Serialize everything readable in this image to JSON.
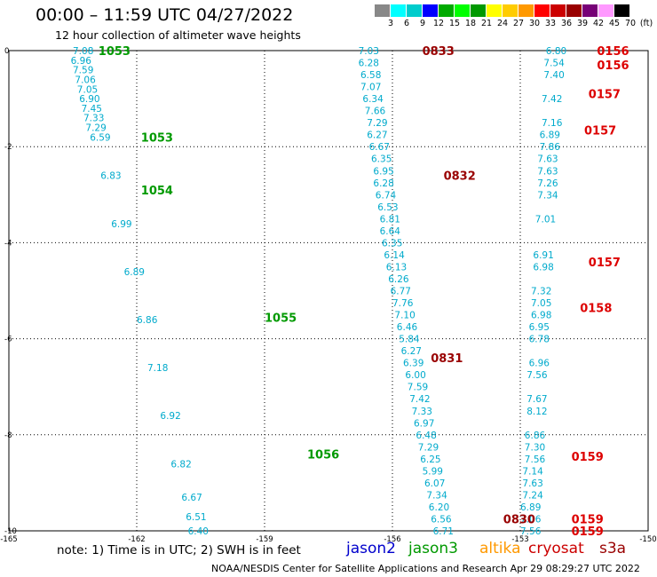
{
  "header": {
    "title": "00:00 – 11:59 UTC 04/27/2022",
    "subtitle": "12 hour collection of altimeter wave heights"
  },
  "color_scale": {
    "colors": [
      "#888888",
      "#00ffff",
      "#00cccc",
      "#0000ff",
      "#00aa00",
      "#00ff00",
      "#009900",
      "#ffff00",
      "#ffcc00",
      "#ff9900",
      "#ff0000",
      "#cc0000",
      "#990000",
      "#770077",
      "#ff99ff",
      "#000000"
    ],
    "labels": [
      "3",
      "6",
      "9",
      "12",
      "15",
      "18",
      "21",
      "24",
      "27",
      "30",
      "33",
      "36",
      "39",
      "42",
      "45",
      "70",
      "(ft)"
    ]
  },
  "footer": {
    "note": "note:  1) Time is in UTC;  2) SWH is in feet",
    "credit": "NOAA/NESDIS Center for Satellite Applications and Research     Apr 29 08:29:27 UTC 2022",
    "satellites": [
      {
        "name": "jason2",
        "color": "#0000cc"
      },
      {
        "name": "jason3",
        "color": "#009900"
      },
      {
        "name": "altika",
        "color": "#ff9900"
      },
      {
        "name": "cryosat",
        "color": "#cc0000"
      },
      {
        "name": "s3a",
        "color": "#990000"
      }
    ]
  },
  "chart_data": {
    "type": "scatter",
    "title": "00:00 – 11:59 UTC 04/27/2022",
    "subtitle": "12 hour collection of altimeter wave heights",
    "xlabel": "",
    "ylabel": "",
    "xlim": [
      -165,
      -150
    ],
    "ylim": [
      -10,
      0
    ],
    "x_ticks": [
      -165,
      -162,
      -159,
      -156,
      -153,
      -150
    ],
    "y_ticks": [
      0,
      -2,
      -4,
      -6,
      -8,
      -10
    ],
    "grid": true,
    "tracks": [
      {
        "name": "jason3 track (west)",
        "color": "#00aacc",
        "points": [
          {
            "x": -163.5,
            "y": 0.0,
            "v": "7.08"
          },
          {
            "x": -163.55,
            "y": -0.2,
            "v": "6.96"
          },
          {
            "x": -163.5,
            "y": -0.4,
            "v": "7.59"
          },
          {
            "x": -163.45,
            "y": -0.6,
            "v": "7.06"
          },
          {
            "x": -163.4,
            "y": -0.8,
            "v": "7.05"
          },
          {
            "x": -163.35,
            "y": -1.0,
            "v": "6.90"
          },
          {
            "x": -163.3,
            "y": -1.2,
            "v": "7.45"
          },
          {
            "x": -163.25,
            "y": -1.4,
            "v": "7.33"
          },
          {
            "x": -163.2,
            "y": -1.6,
            "v": "7.29"
          },
          {
            "x": -163.1,
            "y": -1.8,
            "v": "6.59"
          },
          {
            "x": -162.85,
            "y": -2.6,
            "v": "6.83"
          },
          {
            "x": -162.6,
            "y": -3.6,
            "v": "6.99"
          },
          {
            "x": -162.3,
            "y": -4.6,
            "v": "6.89"
          },
          {
            "x": -162.0,
            "y": -5.6,
            "v": "6.86"
          },
          {
            "x": -161.75,
            "y": -6.6,
            "v": "7.18"
          },
          {
            "x": -161.45,
            "y": -7.6,
            "v": "6.92"
          },
          {
            "x": -161.2,
            "y": -8.6,
            "v": "6.82"
          },
          {
            "x": -160.95,
            "y": -9.3,
            "v": "6.67"
          },
          {
            "x": -160.85,
            "y": -9.7,
            "v": "6.51"
          },
          {
            "x": -160.8,
            "y": -10.0,
            "v": "6.40"
          }
        ]
      },
      {
        "name": "middle track",
        "color": "#00aacc",
        "points": [
          {
            "x": -156.8,
            "y": 0.0,
            "v": "7.03"
          },
          {
            "x": -156.8,
            "y": -0.25,
            "v": "6.28"
          },
          {
            "x": -156.75,
            "y": -0.5,
            "v": "6.58"
          },
          {
            "x": -156.75,
            "y": -0.75,
            "v": "7.07"
          },
          {
            "x": -156.7,
            "y": -1.0,
            "v": "6.34"
          },
          {
            "x": -156.65,
            "y": -1.25,
            "v": "7.66"
          },
          {
            "x": -156.6,
            "y": -1.5,
            "v": "7.29"
          },
          {
            "x": -156.6,
            "y": -1.75,
            "v": "6.27"
          },
          {
            "x": -156.55,
            "y": -2.0,
            "v": "6.67"
          },
          {
            "x": -156.5,
            "y": -2.25,
            "v": "6.35"
          },
          {
            "x": -156.45,
            "y": -2.5,
            "v": "6.95"
          },
          {
            "x": -156.45,
            "y": -2.75,
            "v": "6.28"
          },
          {
            "x": -156.4,
            "y": -3.0,
            "v": "6.74"
          },
          {
            "x": -156.35,
            "y": -3.25,
            "v": "6.53"
          },
          {
            "x": -156.3,
            "y": -3.5,
            "v": "6.81"
          },
          {
            "x": -156.3,
            "y": -3.75,
            "v": "6.64"
          },
          {
            "x": -156.25,
            "y": -4.0,
            "v": "6.35"
          },
          {
            "x": -156.2,
            "y": -4.25,
            "v": "6.14"
          },
          {
            "x": -156.15,
            "y": -4.5,
            "v": "6.13"
          },
          {
            "x": -156.1,
            "y": -4.75,
            "v": "6.26"
          },
          {
            "x": -156.05,
            "y": -5.0,
            "v": "6.77"
          },
          {
            "x": -156.0,
            "y": -5.25,
            "v": "7.76"
          },
          {
            "x": -155.95,
            "y": -5.5,
            "v": "7.10"
          },
          {
            "x": -155.9,
            "y": -5.75,
            "v": "6.46"
          },
          {
            "x": -155.85,
            "y": -6.0,
            "v": "5.84"
          },
          {
            "x": -155.8,
            "y": -6.25,
            "v": "6.27"
          },
          {
            "x": -155.75,
            "y": -6.5,
            "v": "6.39"
          },
          {
            "x": -155.7,
            "y": -6.75,
            "v": "6.00"
          },
          {
            "x": -155.65,
            "y": -7.0,
            "v": "7.59"
          },
          {
            "x": -155.6,
            "y": -7.25,
            "v": "7.42"
          },
          {
            "x": -155.55,
            "y": -7.5,
            "v": "7.33"
          },
          {
            "x": -155.5,
            "y": -7.75,
            "v": "6.97"
          },
          {
            "x": -155.45,
            "y": -8.0,
            "v": "6.48"
          },
          {
            "x": -155.4,
            "y": -8.25,
            "v": "7.29"
          },
          {
            "x": -155.35,
            "y": -8.5,
            "v": "6.25"
          },
          {
            "x": -155.3,
            "y": -8.75,
            "v": "5.99"
          },
          {
            "x": -155.25,
            "y": -9.0,
            "v": "6.07"
          },
          {
            "x": -155.2,
            "y": -9.25,
            "v": "7.34"
          },
          {
            "x": -155.15,
            "y": -9.5,
            "v": "6.20"
          },
          {
            "x": -155.1,
            "y": -9.75,
            "v": "6.56"
          },
          {
            "x": -155.05,
            "y": -10.0,
            "v": "6.71"
          }
        ]
      },
      {
        "name": "east track",
        "color": "#00aacc",
        "points": [
          {
            "x": -152.4,
            "y": 0.0,
            "v": "6.80"
          },
          {
            "x": -152.45,
            "y": -0.25,
            "v": "7.54"
          },
          {
            "x": -152.45,
            "y": -0.5,
            "v": "7.40"
          },
          {
            "x": -152.5,
            "y": -1.0,
            "v": "7.42"
          },
          {
            "x": -152.5,
            "y": -1.5,
            "v": "7.16"
          },
          {
            "x": -152.55,
            "y": -1.75,
            "v": "6.89"
          },
          {
            "x": -152.55,
            "y": -2.0,
            "v": "7.86"
          },
          {
            "x": -152.6,
            "y": -2.25,
            "v": "7.63"
          },
          {
            "x": -152.6,
            "y": -2.5,
            "v": "7.63"
          },
          {
            "x": -152.6,
            "y": -2.75,
            "v": "7.26"
          },
          {
            "x": -152.6,
            "y": -3.0,
            "v": "7.34"
          },
          {
            "x": -152.65,
            "y": -3.5,
            "v": "7.01"
          },
          {
            "x": -152.7,
            "y": -4.25,
            "v": "6.91"
          },
          {
            "x": -152.7,
            "y": -4.5,
            "v": "6.98"
          },
          {
            "x": -152.75,
            "y": -5.0,
            "v": "7.32"
          },
          {
            "x": -152.75,
            "y": -5.25,
            "v": "7.05"
          },
          {
            "x": -152.75,
            "y": -5.5,
            "v": "6.98"
          },
          {
            "x": -152.8,
            "y": -5.75,
            "v": "6.95"
          },
          {
            "x": -152.8,
            "y": -6.0,
            "v": "6.78"
          },
          {
            "x": -152.8,
            "y": -6.5,
            "v": "6.96"
          },
          {
            "x": -152.85,
            "y": -6.75,
            "v": "7.56"
          },
          {
            "x": -152.85,
            "y": -7.25,
            "v": "7.67"
          },
          {
            "x": -152.85,
            "y": -7.5,
            "v": "8.12"
          },
          {
            "x": -152.9,
            "y": -8.0,
            "v": "6.86"
          },
          {
            "x": -152.9,
            "y": -8.25,
            "v": "7.30"
          },
          {
            "x": -152.9,
            "y": -8.5,
            "v": "7.56"
          },
          {
            "x": -152.95,
            "y": -8.75,
            "v": "7.14"
          },
          {
            "x": -152.95,
            "y": -9.0,
            "v": "7.63"
          },
          {
            "x": -152.95,
            "y": -9.25,
            "v": "7.24"
          },
          {
            "x": -153.0,
            "y": -9.5,
            "v": "6.89"
          },
          {
            "x": -153.0,
            "y": -9.75,
            "v": "7.06"
          },
          {
            "x": -153.0,
            "y": -10.0,
            "v": "7.56"
          }
        ]
      }
    ],
    "time_labels": [
      {
        "text": "1053",
        "color": "#009900",
        "x": -162.9,
        "y": 0.0
      },
      {
        "text": "1053",
        "color": "#009900",
        "x": -161.9,
        "y": -1.8
      },
      {
        "text": "1054",
        "color": "#009900",
        "x": -161.9,
        "y": -2.9
      },
      {
        "text": "1055",
        "color": "#009900",
        "x": -159.0,
        "y": -5.55
      },
      {
        "text": "1056",
        "color": "#009900",
        "x": -158.0,
        "y": -8.4
      },
      {
        "text": "0833",
        "color": "#990000",
        "x": -155.3,
        "y": 0.0
      },
      {
        "text": "0832",
        "color": "#990000",
        "x": -154.8,
        "y": -2.6
      },
      {
        "text": "0831",
        "color": "#990000",
        "x": -155.1,
        "y": -6.4
      },
      {
        "text": "0830",
        "color": "#990000",
        "x": -153.4,
        "y": -9.75
      },
      {
        "text": "0156",
        "color": "#dd0000",
        "x": -151.2,
        "y": 0.0
      },
      {
        "text": "0156",
        "color": "#dd0000",
        "x": -151.2,
        "y": -0.3
      },
      {
        "text": "0157",
        "color": "#dd0000",
        "x": -151.4,
        "y": -0.9
      },
      {
        "text": "0157",
        "color": "#dd0000",
        "x": -151.5,
        "y": -1.65
      },
      {
        "text": "0157",
        "color": "#dd0000",
        "x": -151.4,
        "y": -4.4
      },
      {
        "text": "0158",
        "color": "#dd0000",
        "x": -151.6,
        "y": -5.35
      },
      {
        "text": "0159",
        "color": "#dd0000",
        "x": -151.8,
        "y": -8.45
      },
      {
        "text": "0159",
        "color": "#dd0000",
        "x": -151.8,
        "y": -9.75
      },
      {
        "text": "0159",
        "color": "#dd0000",
        "x": -151.8,
        "y": -10.0
      }
    ]
  }
}
